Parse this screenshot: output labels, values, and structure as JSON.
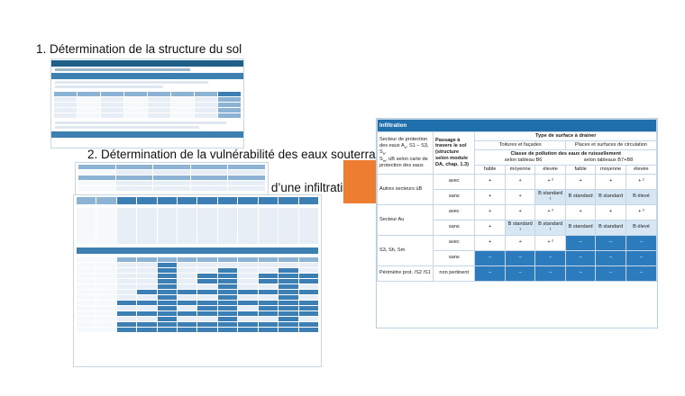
{
  "headings": {
    "h1": "1. Détermination de la structure du sol",
    "h2": "2. Détermination de la vulnérabilité des eaux souterraines",
    "h3": "3. Détermination de l’admissibilité d’une infiltration"
  },
  "infiltration_table": {
    "title": "Infiltration",
    "col_sector": "Secteur de protection des eaux A",
    "col_sector_rest": ", S1 – S3, S",
    "col_sector_tail": " selon carte de protection des eaux",
    "col_passage": "Passage à travers le sol (structure selon module DA, chap. 1.3)",
    "surface_header": "Type de surface à drainer",
    "toitures": "Toitures et façades",
    "places": "Places et surfaces de circulation",
    "pollution_header": "Classe de pollution des eaux de ruissellement",
    "tab_b6": "selon tableau B6",
    "tab_b7": "selon tableaux B7+B8",
    "levels": [
      "faible",
      "moyenne",
      "élevée",
      "faible",
      "moyenne",
      "élevée"
    ],
    "rows": [
      {
        "sector": "Autres secteurs üB",
        "passage": "avec",
        "cells": [
          "+",
          "+",
          "+ ²",
          "+",
          "+",
          "+ ²"
        ]
      },
      {
        "sector": "",
        "passage": "sans",
        "cells": [
          "+",
          "+",
          "B standard ¹",
          "B standard",
          "B standard",
          "B élevé"
        ]
      },
      {
        "sector": "Secteur Au",
        "passage": "avec",
        "cells": [
          "+",
          "+",
          "+ ²",
          "+",
          "+",
          "+ ²"
        ]
      },
      {
        "sector": "",
        "passage": "sans",
        "cells": [
          "+",
          "B standard ¹",
          "B standard ¹",
          "B standard",
          "B standard",
          "B élevé"
        ]
      },
      {
        "sector": "S3, Sh, Sm",
        "passage": "avec",
        "cells": [
          "+",
          "+",
          "+ ²",
          "–",
          "–",
          "–"
        ]
      },
      {
        "sector": "",
        "passage": "sans",
        "cells": [
          "–",
          "–",
          "–",
          "–",
          "–",
          "–"
        ]
      },
      {
        "sector": "Périmètre prot. /S2 /S1",
        "passage": "non pertinent",
        "cells": [
          "–",
          "–",
          "–",
          "–",
          "–",
          "–"
        ]
      }
    ]
  },
  "colors": {
    "accent": "#1f6fad",
    "arrow": "#ed7d31",
    "light_cell": "#d6e6f3",
    "dark_cell": "#2c7cbd"
  }
}
